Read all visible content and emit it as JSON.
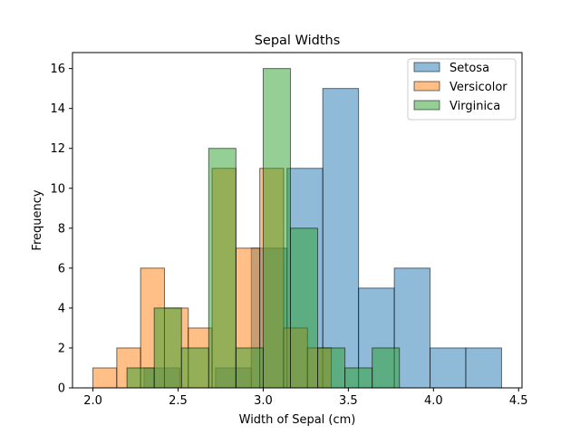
{
  "chart_data": {
    "type": "bar",
    "subtype": "histogram-overlay",
    "title": "Sepal Widths",
    "xlabel": "Width of Sepal (cm)",
    "ylabel": "Frequency",
    "xlim": [
      1.88,
      4.52
    ],
    "ylim": [
      0,
      16.8
    ],
    "xticks": [
      2.0,
      2.5,
      3.0,
      3.5,
      4.0,
      4.5
    ],
    "xtick_labels": [
      "2.0",
      "2.5",
      "3.0",
      "3.5",
      "4.0",
      "4.5"
    ],
    "yticks": [
      0,
      2,
      4,
      6,
      8,
      10,
      12,
      14,
      16
    ],
    "ytick_labels": [
      "0",
      "2",
      "4",
      "6",
      "8",
      "10",
      "12",
      "14",
      "16"
    ],
    "grid": false,
    "legend_position": "top-right",
    "series": [
      {
        "name": "Setosa",
        "color": "#1f77b4",
        "bin_start": 2.3,
        "bin_width": 0.21,
        "values": [
          1,
          0,
          1,
          7,
          11,
          15,
          5,
          6,
          2,
          2
        ]
      },
      {
        "name": "Versicolor",
        "color": "#ff7f0e",
        "bin_start": 2.0,
        "bin_width": 0.14,
        "values": [
          1,
          2,
          6,
          4,
          3,
          11,
          7,
          11,
          3,
          2
        ]
      },
      {
        "name": "Virginica",
        "color": "#2ca02c",
        "bin_start": 2.2,
        "bin_width": 0.16,
        "values": [
          1,
          4,
          2,
          12,
          2,
          16,
          8,
          2,
          1,
          2
        ]
      }
    ]
  }
}
